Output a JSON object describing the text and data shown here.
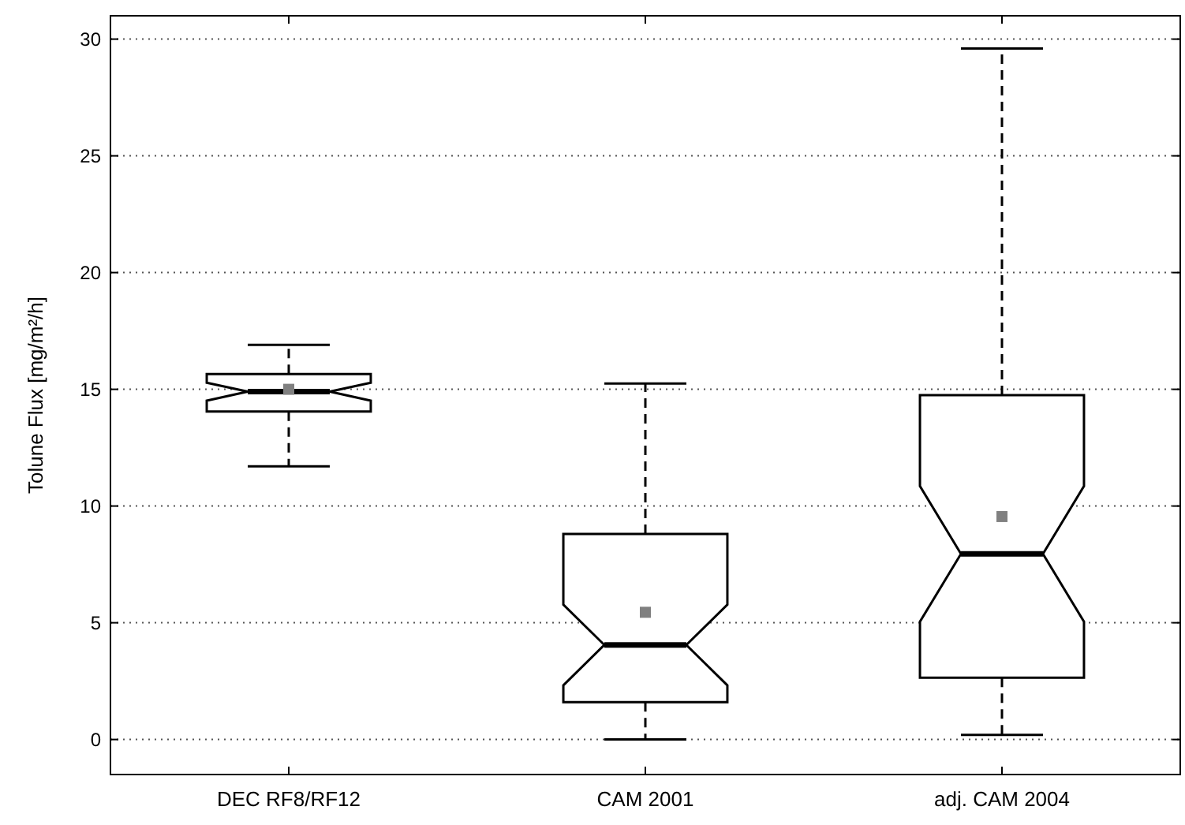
{
  "chart_data": {
    "type": "box",
    "ylabel": "Tolune Flux [mg/m²/h]",
    "categories": [
      "DEC RF8/RF12",
      "CAM 2001",
      "adj. CAM 2004"
    ],
    "boxes": [
      {
        "low": 11.7,
        "q1": 14.05,
        "median": 14.9,
        "q3": 15.65,
        "high": 16.9,
        "mean": 15.0
      },
      {
        "low": 0,
        "q1": 1.6,
        "median": 4.05,
        "q3": 8.8,
        "high": 15.25,
        "mean": 5.45
      },
      {
        "low": 0.2,
        "q1": 2.65,
        "median": 7.95,
        "q3": 14.75,
        "high": 29.6,
        "mean": 9.55
      }
    ],
    "ylim": [
      -1.5,
      31
    ],
    "yticks": [
      0,
      5,
      10,
      15,
      20,
      25,
      30
    ],
    "grid": "y",
    "marker": "square",
    "color": "#000000"
  }
}
